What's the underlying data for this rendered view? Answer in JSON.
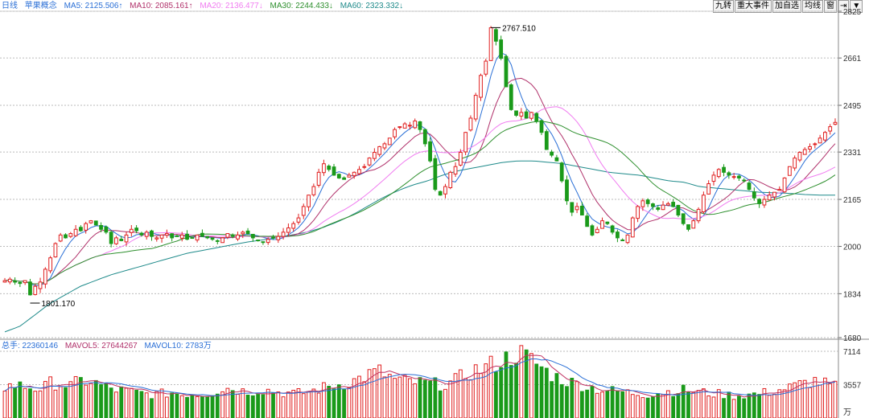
{
  "legend": {
    "period": "日线",
    "name": "苹果概念",
    "ma5": "MA5: 2125.506↑",
    "ma10": "MA10: 2085.161↑",
    "ma20": "MA20: 2136.477↓",
    "ma30": "MA30: 2244.433↓",
    "ma60": "MA60: 2323.332↓"
  },
  "vol_legend": {
    "total": "总手: 22360146",
    "mavol5": "MAVOL5: 27644267",
    "mavol10": "MAVOL10: 2783万"
  },
  "toolbar": {
    "jiuzhuan": "九转",
    "events": "重大事件",
    "add_watch": "加自选",
    "avg_line": "均线",
    "window": "窗",
    "arrow": "⇥",
    "dropdown": "▼"
  },
  "colors": {
    "up": "#e02020",
    "down": "#1a9a1a",
    "ma5": "#2a6fd6",
    "ma10": "#b0306a",
    "ma20": "#f07cf0",
    "ma30": "#2d8f2d",
    "ma60": "#1e8a8a"
  },
  "chart_data": {
    "type": "candlestick",
    "y_ticks": [
      "2825",
      "2661",
      "2495",
      "2331",
      "2165",
      "2000",
      "1834",
      "1680"
    ],
    "ylim": [
      1680,
      2825
    ],
    "vol_ticks": [
      "7114",
      "3557"
    ],
    "vol_unit": "万",
    "vol_max": 7114,
    "annotations": [
      {
        "label": "2767.510",
        "value": 2767.51,
        "type": "high"
      },
      {
        "label": "1801.170",
        "value": 1801.17,
        "type": "low"
      }
    ],
    "close_path": [
      1880,
      1885,
      1875,
      1870,
      1880,
      1830,
      1860,
      1875,
      1920,
      1960,
      2010,
      2040,
      2030,
      2045,
      2060,
      2055,
      2080,
      2090,
      2075,
      2060,
      2050,
      2010,
      2030,
      2020,
      2040,
      2060,
      2055,
      2040,
      2050,
      2035,
      2030,
      2040,
      2045,
      2030,
      2035,
      2040,
      2025,
      2030,
      2040,
      2035,
      2030,
      2025,
      2020,
      2030,
      2045,
      2035,
      2040,
      2050,
      2045,
      2030,
      2020,
      2015,
      2025,
      2030,
      2035,
      2050,
      2065,
      2080,
      2100,
      2140,
      2180,
      2210,
      2260,
      2290,
      2270,
      2250,
      2240,
      2235,
      2250,
      2260,
      2270,
      2280,
      2310,
      2330,
      2350,
      2360,
      2380,
      2410,
      2420,
      2430,
      2425,
      2440,
      2410,
      2360,
      2300,
      2200,
      2180,
      2210,
      2260,
      2280,
      2330,
      2400,
      2450,
      2530,
      2600,
      2650,
      2767,
      2720,
      2660,
      2560,
      2480,
      2460,
      2470,
      2450,
      2470,
      2440,
      2400,
      2340,
      2320,
      2300,
      2230,
      2160,
      2120,
      2140,
      2110,
      2070,
      2040,
      2060,
      2090,
      2080,
      2050,
      2030,
      2020,
      2040,
      2100,
      2140,
      2160,
      2150,
      2140,
      2130,
      2145,
      2150,
      2140,
      2110,
      2080,
      2060,
      2090,
      2130,
      2180,
      2220,
      2250,
      2270,
      2260,
      2250,
      2245,
      2240,
      2230,
      2200,
      2170,
      2150,
      2165,
      2180,
      2190,
      2200,
      2240,
      2280,
      2310,
      2330,
      2340,
      2350,
      2360,
      2380,
      2400,
      2420,
      2435
    ],
    "ma60_path": [
      1700,
      1720,
      1760,
      1800,
      1830,
      1860,
      1880,
      1900,
      1915,
      1930,
      1945,
      1960,
      1975,
      1985,
      1995,
      2005,
      2015,
      2022,
      2030,
      2040,
      2050,
      2065,
      2085,
      2110,
      2140,
      2170,
      2195,
      2215,
      2230,
      2250,
      2265,
      2275,
      2285,
      2295,
      2300,
      2300,
      2295,
      2290,
      2280,
      2270,
      2260,
      2255,
      2250,
      2240,
      2230,
      2225,
      2210,
      2205,
      2200,
      2195,
      2190,
      2188,
      2186,
      2182,
      2180,
      2180
    ],
    "vol_path": [
      3300,
      3500,
      3400,
      3200,
      3100,
      3800,
      3600,
      3400,
      3900,
      4000,
      3600,
      3200,
      3000,
      2900,
      2700,
      2600,
      2500,
      2600,
      2700,
      2500,
      2600,
      2500,
      2700,
      3000,
      3200,
      3000,
      2800,
      2900,
      3000,
      2800,
      2700,
      2600,
      2700,
      2900,
      3200,
      3400,
      3600,
      3800,
      4200,
      4600,
      5000,
      4500,
      4000,
      3900,
      3800,
      3700,
      3600,
      3600,
      3800,
      4400,
      5000,
      5200,
      5600,
      6000,
      6400,
      7000,
      6400,
      5800,
      5000,
      4400,
      4000,
      3700,
      3500,
      3200,
      3000,
      2900,
      2800,
      2700,
      2600,
      2500,
      2700,
      2800,
      2900,
      3000,
      2800,
      2700,
      2600,
      2500,
      2400,
      2400,
      2500,
      2600,
      2800,
      3000,
      3200,
      3500,
      3800,
      4000,
      3600,
      3300
    ]
  }
}
